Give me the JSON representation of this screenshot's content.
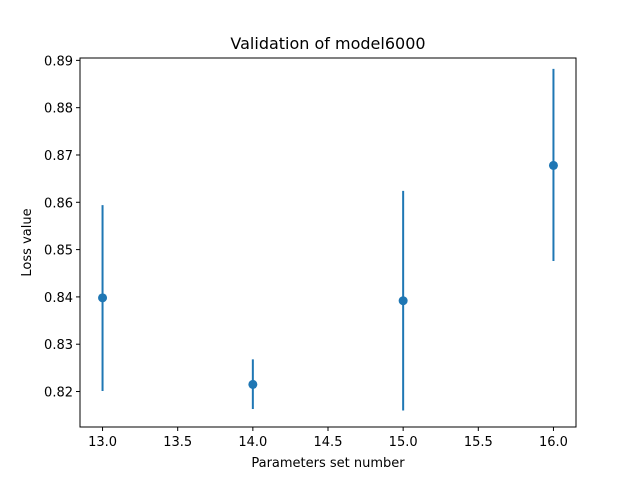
{
  "chart_data": {
    "type": "scatter",
    "title": "Validation of model6000",
    "xlabel": "Parameters set number",
    "ylabel": "Loss value",
    "xlim": [
      12.85,
      16.15
    ],
    "ylim": [
      0.8125,
      0.8905
    ],
    "xticks": [
      "13.0",
      "13.5",
      "14.0",
      "14.5",
      "15.0",
      "15.5",
      "16.0"
    ],
    "xtick_values": [
      13.0,
      13.5,
      14.0,
      14.5,
      15.0,
      15.5,
      16.0
    ],
    "yticks": [
      "0.82",
      "0.83",
      "0.84",
      "0.85",
      "0.86",
      "0.87",
      "0.88",
      "0.89"
    ],
    "ytick_values": [
      0.82,
      0.83,
      0.84,
      0.85,
      0.86,
      0.87,
      0.88,
      0.89
    ],
    "grid": false,
    "color": "#1f77b4",
    "points": [
      {
        "x": 13,
        "y": 0.8398,
        "ylow": 0.8201,
        "yhigh": 0.8594
      },
      {
        "x": 14,
        "y": 0.8215,
        "ylow": 0.8163,
        "yhigh": 0.8268
      },
      {
        "x": 15,
        "y": 0.8392,
        "ylow": 0.816,
        "yhigh": 0.8624
      },
      {
        "x": 16,
        "y": 0.8678,
        "ylow": 0.8476,
        "yhigh": 0.8882
      }
    ]
  }
}
